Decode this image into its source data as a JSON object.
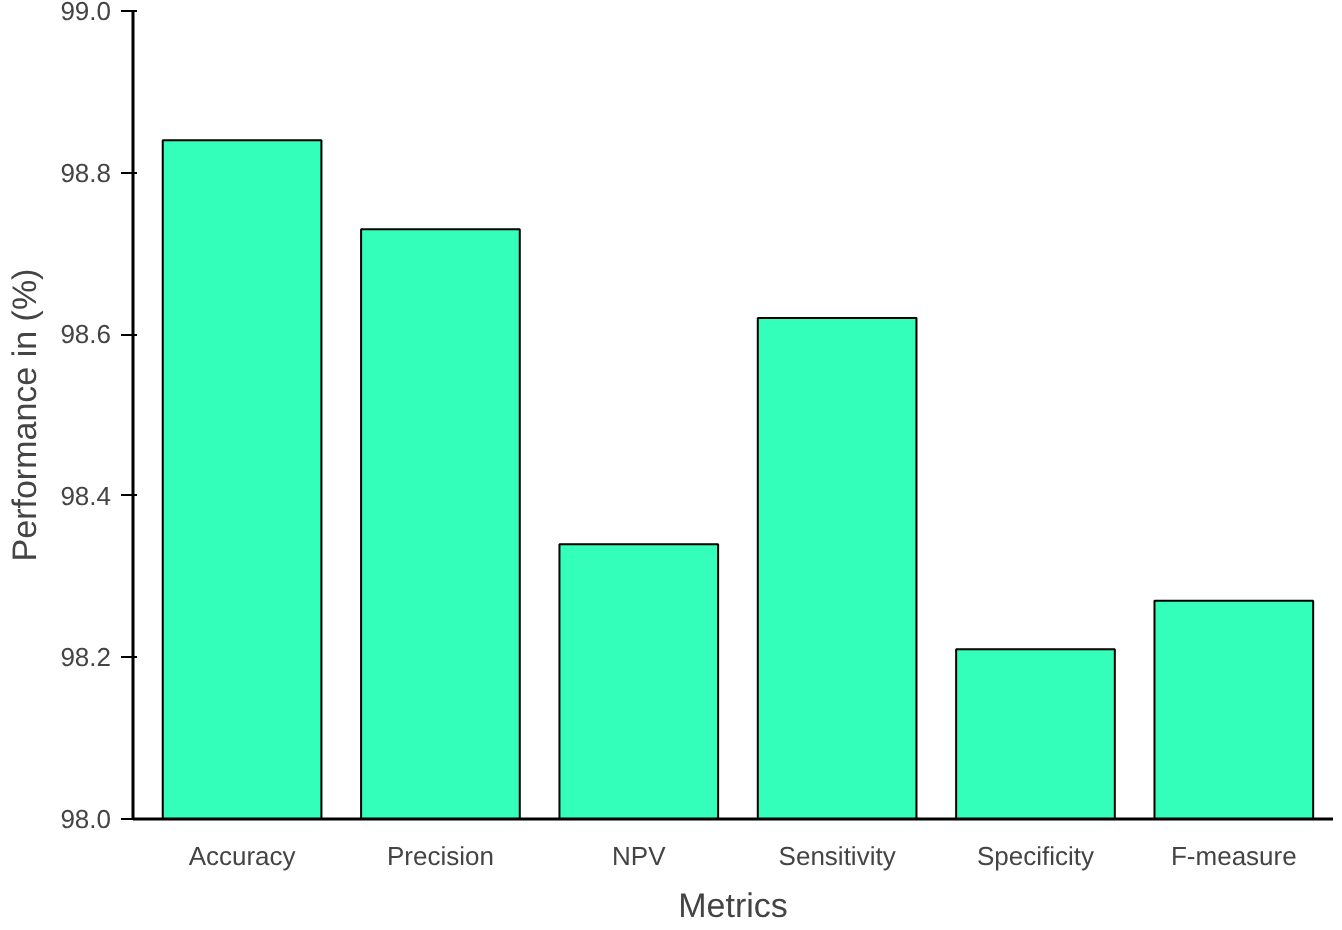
{
  "chart_data": {
    "type": "bar",
    "xlabel": "Metrics",
    "ylabel": "Performance in (%)",
    "categories": [
      "Accuracy",
      "Precision",
      "NPV",
      "Sensitivity",
      "Specificity",
      "F-measure"
    ],
    "values": [
      98.84,
      98.73,
      98.34,
      98.62,
      98.21,
      98.27
    ],
    "color": "#33ffbb",
    "ylim": [
      98.0,
      99.0
    ],
    "yticks": [
      {
        "value": 98.0,
        "label": "98.0"
      },
      {
        "value": 98.2,
        "label": "98.2"
      },
      {
        "value": 98.4,
        "label": "98.4"
      },
      {
        "value": 98.6,
        "label": "98.6"
      },
      {
        "value": 98.8,
        "label": "98.8"
      },
      {
        "value": 99.0,
        "label": "99.0"
      }
    ],
    "grid": false
  }
}
